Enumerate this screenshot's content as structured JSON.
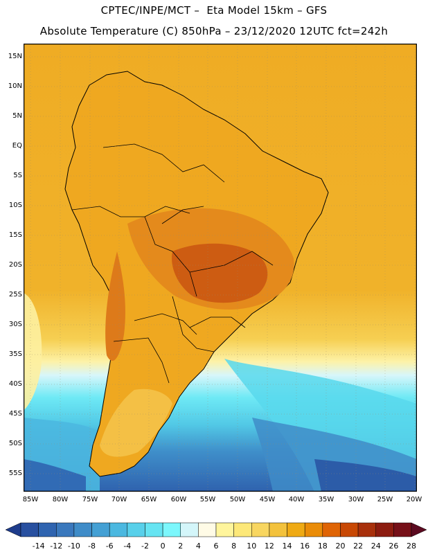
{
  "header": {
    "line1": "CPTEC/INPE/MCT –  Eta Model 15km – GFS",
    "line2": "Absolute Temperature (C) 850hPa – 23/12/2020 12UTC fct=242h"
  },
  "map": {
    "lat_labels": [
      "15N",
      "10N",
      "5N",
      "EQ",
      "5S",
      "10S",
      "15S",
      "20S",
      "25S",
      "30S",
      "35S",
      "40S",
      "45S",
      "50S",
      "55S"
    ],
    "lon_labels": [
      "85W",
      "80W",
      "75W",
      "70W",
      "65W",
      "60W",
      "55W",
      "50W",
      "45W",
      "40W",
      "35W",
      "30W",
      "25W",
      "20W"
    ]
  },
  "colorbar": {
    "labels": [
      "-14",
      "-12",
      "-10",
      "-8",
      "-6",
      "-4",
      "-2",
      "0",
      "2",
      "4",
      "6",
      "8",
      "10",
      "12",
      "14",
      "16",
      "18",
      "20",
      "22",
      "24",
      "26",
      "28"
    ],
    "colors": [
      "#1e3c8c",
      "#2850a0",
      "#2f64b0",
      "#3a78bd",
      "#3f8cc8",
      "#44a0d4",
      "#4bb8e0",
      "#58d0ea",
      "#66e4f2",
      "#7cf7fc",
      "#d4f6fa",
      "#fffbe6",
      "#fff59c",
      "#fde878",
      "#f8d660",
      "#f3c23c",
      "#efaa14",
      "#ea8c08",
      "#df6404",
      "#c84804",
      "#a8300c",
      "#8c1c10",
      "#761018",
      "#5c0a20"
    ]
  }
}
